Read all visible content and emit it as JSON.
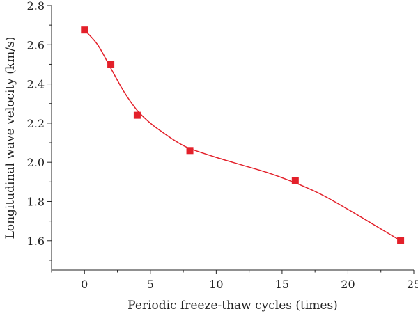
{
  "chart_data": {
    "type": "scatter",
    "title": "",
    "xlabel": "Periodic freeze-thaw cycles (times)",
    "ylabel": "Longitudinal wave velocity (km/s)",
    "xlim": [
      -2.5,
      25
    ],
    "ylim": [
      1.45,
      2.8
    ],
    "xticks": [
      0,
      5,
      10,
      15,
      20,
      25
    ],
    "yticks": [
      1.6,
      1.8,
      2.0,
      2.2,
      2.4,
      2.6,
      2.8
    ],
    "xtick_labels": [
      "0",
      "5",
      "10",
      "15",
      "20",
      "25"
    ],
    "ytick_labels": [
      "1.6",
      "1.8",
      "2.0",
      "2.2",
      "2.4",
      "2.6",
      "2.8"
    ],
    "grid": false,
    "legend": "none",
    "series": [
      {
        "marker": "square",
        "color": "#e3202a",
        "points": [
          {
            "x": 0,
            "y": 2.675
          },
          {
            "x": 2,
            "y": 2.5
          },
          {
            "x": 4,
            "y": 2.24
          },
          {
            "x": 8,
            "y": 2.06
          },
          {
            "x": 16,
            "y": 1.905
          },
          {
            "x": 24,
            "y": 1.6
          }
        ]
      }
    ],
    "fit_curve": {
      "color": "#e3202a",
      "points": [
        {
          "x": 0,
          "y": 2.675
        },
        {
          "x": 1,
          "y": 2.6
        },
        {
          "x": 2,
          "y": 2.48
        },
        {
          "x": 3,
          "y": 2.36
        },
        {
          "x": 4,
          "y": 2.265
        },
        {
          "x": 5,
          "y": 2.2
        },
        {
          "x": 6,
          "y": 2.15
        },
        {
          "x": 7,
          "y": 2.105
        },
        {
          "x": 8,
          "y": 2.07
        },
        {
          "x": 10,
          "y": 2.025
        },
        {
          "x": 12,
          "y": 1.985
        },
        {
          "x": 14,
          "y": 1.945
        },
        {
          "x": 16,
          "y": 1.895
        },
        {
          "x": 18,
          "y": 1.835
        },
        {
          "x": 20,
          "y": 1.76
        },
        {
          "x": 22,
          "y": 1.68
        },
        {
          "x": 24,
          "y": 1.6
        }
      ]
    }
  }
}
